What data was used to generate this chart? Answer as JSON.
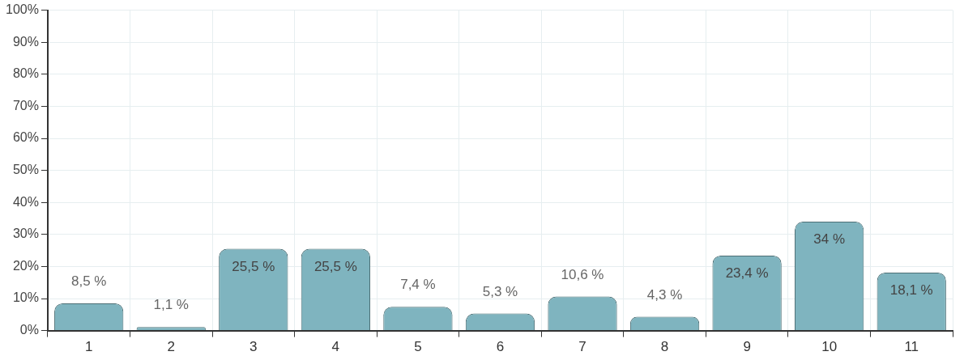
{
  "chart_data": {
    "type": "bar",
    "categories": [
      "1",
      "2",
      "3",
      "4",
      "5",
      "6",
      "7",
      "8",
      "9",
      "10",
      "11"
    ],
    "values": [
      8.5,
      1.1,
      25.5,
      25.5,
      7.4,
      5.3,
      10.6,
      4.3,
      23.4,
      34,
      18.1
    ],
    "value_labels": [
      "8,5 %",
      "1,1 %",
      "25,5 %",
      "25,5 %",
      "7,4 %",
      "5,3 %",
      "10,6 %",
      "4,3 %",
      "23,4 %",
      "34 %",
      "18,1 %"
    ],
    "color": "#7fb4bf",
    "ylim": [
      0,
      100
    ],
    "yticks": [
      {
        "value": 0,
        "label": "0%"
      },
      {
        "value": 10,
        "label": "10%"
      },
      {
        "value": 20,
        "label": "20%"
      },
      {
        "value": 30,
        "label": "30%"
      },
      {
        "value": 40,
        "label": "40%"
      },
      {
        "value": 50,
        "label": "50%"
      },
      {
        "value": 60,
        "label": "60%"
      },
      {
        "value": 70,
        "label": "70%"
      },
      {
        "value": 80,
        "label": "80%"
      },
      {
        "value": 90,
        "label": "90%"
      },
      {
        "value": 100,
        "label": "100%"
      }
    ],
    "grid": true,
    "legend": false
  }
}
